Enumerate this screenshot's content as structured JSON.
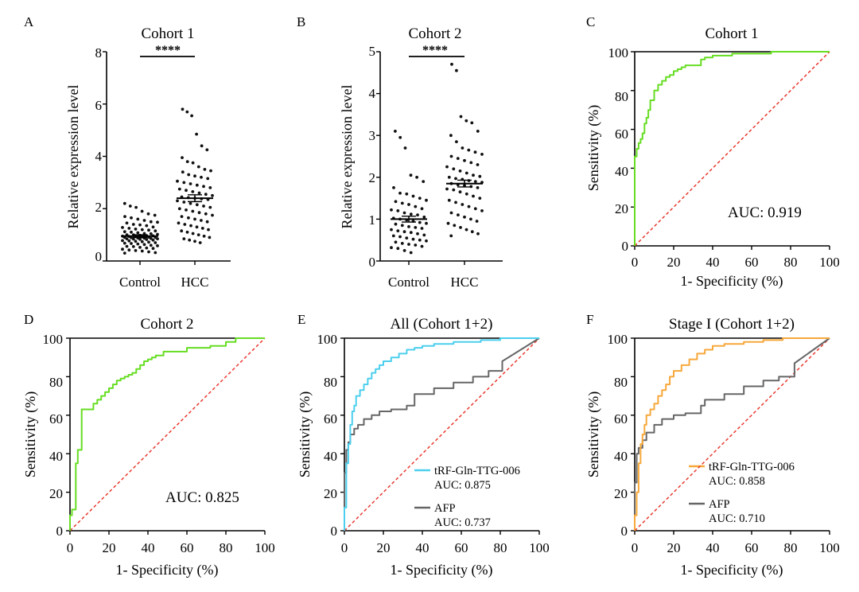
{
  "figure": {
    "width": 1080,
    "height": 744
  },
  "chart_data": [
    {
      "panel": "A",
      "type": "scatter",
      "title": "Cohort 1",
      "xlabel": "",
      "ylabel": "Relative expression level",
      "categories": [
        "Control",
        "HCC"
      ],
      "ylim": [
        0,
        8
      ],
      "yticks": [
        0,
        2,
        4,
        6,
        8
      ],
      "yticklabels": [
        "0",
        "2",
        "4",
        "6",
        "8"
      ],
      "significance": "****",
      "groups": [
        {
          "name": "Control",
          "mean": 0.95,
          "sem": 0.05,
          "values": [
            2.2,
            2.1,
            2.05,
            1.9,
            1.8,
            1.75,
            1.7,
            1.65,
            1.6,
            1.55,
            1.5,
            1.48,
            1.45,
            1.4,
            1.38,
            1.35,
            1.3,
            1.28,
            1.25,
            1.22,
            1.2,
            1.18,
            1.15,
            1.12,
            1.1,
            1.08,
            1.05,
            1.04,
            1.02,
            1.0,
            1.0,
            0.98,
            0.97,
            0.96,
            0.95,
            0.94,
            0.93,
            0.92,
            0.91,
            0.9,
            0.9,
            0.89,
            0.88,
            0.87,
            0.86,
            0.85,
            0.85,
            0.84,
            0.83,
            0.82,
            0.8,
            0.78,
            0.77,
            0.75,
            0.74,
            0.72,
            0.7,
            0.68,
            0.67,
            0.65,
            0.63,
            0.6,
            0.58,
            0.56,
            0.55,
            0.52,
            0.5,
            0.48,
            0.45,
            0.42,
            0.4,
            0.38,
            0.35,
            0.32,
            0.3
          ]
        },
        {
          "name": "HCC",
          "mean": 2.4,
          "sem": 0.13,
          "values": [
            5.8,
            5.7,
            5.55,
            4.85,
            4.4,
            4.25,
            3.95,
            3.8,
            3.75,
            3.6,
            3.5,
            3.45,
            3.4,
            3.3,
            3.25,
            3.2,
            3.15,
            3.05,
            3.0,
            2.95,
            2.9,
            2.85,
            2.8,
            2.75,
            2.7,
            2.65,
            2.6,
            2.55,
            2.5,
            2.45,
            2.42,
            2.4,
            2.38,
            2.35,
            2.3,
            2.25,
            2.2,
            2.15,
            2.1,
            2.05,
            2.0,
            1.95,
            1.9,
            1.85,
            1.8,
            1.75,
            1.7,
            1.65,
            1.6,
            1.55,
            1.5,
            1.45,
            1.4,
            1.35,
            1.3,
            1.25,
            1.2,
            1.15,
            1.1,
            1.05,
            1.0,
            0.95,
            0.9,
            0.85,
            0.8,
            0.75,
            0.7
          ]
        }
      ]
    },
    {
      "panel": "B",
      "type": "scatter",
      "title": "Cohort 2",
      "xlabel": "",
      "ylabel": "Relative expression level",
      "categories": [
        "Control",
        "HCC"
      ],
      "ylim": [
        0,
        5
      ],
      "yticks": [
        0,
        1,
        2,
        3,
        4,
        5
      ],
      "yticklabels": [
        "0",
        "1",
        "2",
        "3",
        "4",
        "5"
      ],
      "significance": "****",
      "groups": [
        {
          "name": "Control",
          "mean": 1.0,
          "sem": 0.07,
          "values": [
            3.1,
            2.95,
            2.7,
            2.05,
            2.0,
            1.9,
            1.75,
            1.62,
            1.6,
            1.55,
            1.5,
            1.45,
            1.42,
            1.38,
            1.35,
            1.3,
            1.25,
            1.22,
            1.2,
            1.15,
            1.12,
            1.1,
            1.05,
            1.02,
            1.0,
            0.98,
            0.95,
            0.92,
            0.9,
            0.88,
            0.85,
            0.82,
            0.8,
            0.78,
            0.75,
            0.72,
            0.7,
            0.68,
            0.65,
            0.62,
            0.6,
            0.58,
            0.55,
            0.52,
            0.5,
            0.48,
            0.45,
            0.42,
            0.4,
            0.38,
            0.35,
            0.32,
            0.3,
            0.25,
            0.2
          ]
        },
        {
          "name": "HCC",
          "mean": 1.85,
          "sem": 0.08,
          "values": [
            4.7,
            4.55,
            3.45,
            3.35,
            3.3,
            3.1,
            3.0,
            2.85,
            2.7,
            2.65,
            2.6,
            2.55,
            2.5,
            2.45,
            2.4,
            2.35,
            2.3,
            2.25,
            2.2,
            2.15,
            2.1,
            2.05,
            2.02,
            2.0,
            1.97,
            1.95,
            1.92,
            1.9,
            1.88,
            1.85,
            1.82,
            1.8,
            1.78,
            1.75,
            1.72,
            1.7,
            1.65,
            1.6,
            1.55,
            1.5,
            1.45,
            1.4,
            1.35,
            1.3,
            1.25,
            1.2,
            1.15,
            1.1,
            1.05,
            1.0,
            0.95,
            0.9,
            0.85,
            0.8,
            0.75,
            0.7,
            0.65,
            0.6
          ]
        }
      ]
    },
    {
      "panel": "C",
      "type": "line",
      "title": "Cohort 1",
      "xlabel": "1- Specificity (%)",
      "ylabel": "Sensitivity (%)",
      "xlim": [
        0,
        100
      ],
      "ylim": [
        0,
        100
      ],
      "xticks": [
        0,
        20,
        40,
        60,
        80,
        100
      ],
      "xticklabels": [
        "0",
        "20",
        "40",
        "60",
        "80",
        "100"
      ],
      "yticks": [
        0,
        20,
        40,
        60,
        80,
        100
      ],
      "yticklabels": [
        "0",
        "20",
        "40",
        "60",
        "80",
        "100"
      ],
      "annotation": "AUC: 0.919",
      "reference_line": true,
      "series": [
        {
          "name": "Cohort 1",
          "color": "#66dd22",
          "x": [
            0,
            0,
            1,
            1,
            2,
            2,
            3,
            3,
            4,
            4,
            5,
            5,
            6,
            6,
            7,
            7,
            8,
            8,
            10,
            10,
            12,
            12,
            14,
            14,
            16,
            16,
            18,
            18,
            20,
            20,
            22,
            22,
            24,
            24,
            26,
            26,
            34,
            34,
            36,
            36,
            40,
            40,
            50,
            50,
            70,
            70,
            100
          ],
          "y": [
            0,
            46,
            46,
            50,
            50,
            53,
            53,
            55,
            55,
            58,
            58,
            63,
            63,
            66,
            66,
            70,
            70,
            75,
            75,
            80,
            80,
            83,
            83,
            85,
            85,
            87,
            87,
            88,
            88,
            90,
            90,
            91,
            91,
            92,
            92,
            93,
            93,
            96,
            96,
            97,
            97,
            98,
            98,
            99,
            99,
            100,
            100
          ]
        }
      ]
    },
    {
      "panel": "D",
      "type": "line",
      "title": "Cohort 2",
      "xlabel": "1- Specificity (%)",
      "ylabel": "Sensitivity (%)",
      "xlim": [
        0,
        100
      ],
      "ylim": [
        0,
        100
      ],
      "xticks": [
        0,
        20,
        40,
        60,
        80,
        100
      ],
      "xticklabels": [
        "0",
        "20",
        "40",
        "60",
        "80",
        "100"
      ],
      "yticks": [
        0,
        20,
        40,
        60,
        80,
        100
      ],
      "yticklabels": [
        "0",
        "20",
        "40",
        "60",
        "80",
        "100"
      ],
      "annotation": "AUC: 0.825",
      "reference_line": true,
      "series": [
        {
          "name": "Cohort 2",
          "color": "#66dd22",
          "x": [
            0,
            0,
            1,
            1,
            3,
            3,
            4,
            4,
            6,
            6,
            7,
            7,
            12,
            12,
            14,
            14,
            16,
            16,
            18,
            18,
            20,
            20,
            22,
            22,
            24,
            24,
            26,
            26,
            28,
            28,
            30,
            30,
            32,
            32,
            34,
            34,
            36,
            36,
            38,
            38,
            40,
            40,
            42,
            42,
            44,
            44,
            48,
            48,
            60,
            60,
            72,
            72,
            80,
            80,
            85,
            85,
            100
          ],
          "y": [
            0,
            8,
            8,
            11,
            11,
            35,
            35,
            42,
            42,
            63,
            63,
            63,
            63,
            66,
            66,
            68,
            68,
            70,
            70,
            72,
            72,
            74,
            74,
            76,
            76,
            78,
            78,
            79,
            79,
            80,
            80,
            81,
            81,
            82,
            82,
            84,
            84,
            86,
            86,
            88,
            88,
            89,
            89,
            90,
            90,
            91,
            91,
            93,
            93,
            95,
            95,
            96,
            96,
            98,
            98,
            100,
            100
          ]
        }
      ]
    },
    {
      "panel": "E",
      "type": "line",
      "title": "All (Cohort 1+2)",
      "xlabel": "1- Specificity (%)",
      "ylabel": "Sensitivity (%)",
      "xlim": [
        0,
        100
      ],
      "ylim": [
        0,
        100
      ],
      "xticks": [
        0,
        20,
        40,
        60,
        80,
        100
      ],
      "xticklabels": [
        "0",
        "20",
        "40",
        "60",
        "80",
        "100"
      ],
      "yticks": [
        0,
        20,
        40,
        60,
        80,
        100
      ],
      "yticklabels": [
        "0",
        "20",
        "40",
        "60",
        "80",
        "100"
      ],
      "reference_line": true,
      "series": [
        {
          "name": "tRF-Gln-TTG-006",
          "auc_label": "AUC: 0.875",
          "color": "#4ccfee",
          "x": [
            0,
            0,
            1,
            1,
            2,
            2,
            3,
            3,
            4,
            4,
            5,
            5,
            6,
            6,
            8,
            8,
            10,
            10,
            12,
            12,
            14,
            14,
            16,
            16,
            18,
            18,
            20,
            20,
            24,
            24,
            28,
            28,
            32,
            32,
            36,
            36,
            40,
            40,
            46,
            46,
            56,
            56,
            70,
            70,
            80,
            80,
            100
          ],
          "y": [
            0,
            12,
            12,
            35,
            35,
            45,
            45,
            55,
            55,
            62,
            62,
            65,
            65,
            70,
            70,
            73,
            73,
            76,
            76,
            79,
            79,
            82,
            82,
            84,
            84,
            86,
            86,
            88,
            88,
            90,
            90,
            92,
            92,
            94,
            94,
            95,
            95,
            96,
            96,
            97,
            97,
            98,
            98,
            99,
            99,
            100,
            100
          ]
        },
        {
          "name": "AFP",
          "auc_label": "AUC: 0.737",
          "color": "#666666",
          "x": [
            0,
            0,
            1,
            1,
            2,
            2,
            3,
            3,
            5,
            5,
            7,
            7,
            10,
            10,
            14,
            14,
            18,
            18,
            24,
            24,
            32,
            32,
            36,
            36,
            46,
            46,
            56,
            56,
            66,
            66,
            74,
            74,
            81,
            81,
            100
          ],
          "y": [
            0,
            30,
            30,
            42,
            42,
            46,
            46,
            50,
            50,
            53,
            53,
            55,
            55,
            58,
            58,
            60,
            60,
            62,
            62,
            63,
            63,
            65,
            65,
            71,
            71,
            74,
            74,
            77,
            77,
            80,
            80,
            83,
            83,
            88,
            100
          ]
        }
      ]
    },
    {
      "panel": "F",
      "type": "line",
      "title": "Stage I (Cohort 1+2)",
      "xlabel": "1- Specificity (%)",
      "ylabel": "Sensitivity (%)",
      "xlim": [
        0,
        100
      ],
      "ylim": [
        0,
        100
      ],
      "xticks": [
        0,
        20,
        40,
        60,
        80,
        100
      ],
      "xticklabels": [
        "0",
        "20",
        "40",
        "60",
        "80",
        "100"
      ],
      "yticks": [
        0,
        20,
        40,
        60,
        80,
        100
      ],
      "yticklabels": [
        "0",
        "20",
        "40",
        "60",
        "80",
        "100"
      ],
      "reference_line": true,
      "series": [
        {
          "name": "tRF-Gln-TTG-006",
          "auc_label": "AUC: 0.858",
          "color": "#f7a83a",
          "x": [
            0,
            0,
            1,
            1,
            2,
            2,
            3,
            3,
            4,
            4,
            5,
            5,
            6,
            6,
            8,
            8,
            10,
            10,
            12,
            12,
            14,
            14,
            16,
            16,
            18,
            18,
            20,
            20,
            24,
            24,
            28,
            28,
            32,
            32,
            36,
            36,
            40,
            40,
            46,
            46,
            56,
            56,
            66,
            66,
            76,
            76,
            100
          ],
          "y": [
            0,
            8,
            8,
            20,
            20,
            35,
            35,
            45,
            45,
            50,
            50,
            55,
            55,
            60,
            60,
            63,
            63,
            66,
            66,
            70,
            70,
            73,
            73,
            76,
            76,
            80,
            80,
            83,
            83,
            86,
            86,
            89,
            89,
            92,
            92,
            94,
            94,
            96,
            96,
            97,
            97,
            98,
            98,
            99,
            99,
            100,
            100
          ]
        },
        {
          "name": "AFP",
          "auc_label": "AUC: 0.710",
          "color": "#666666",
          "x": [
            0,
            0,
            1,
            1,
            2,
            2,
            4,
            4,
            6,
            6,
            10,
            10,
            14,
            14,
            20,
            20,
            26,
            26,
            34,
            34,
            36,
            36,
            46,
            46,
            56,
            56,
            66,
            66,
            74,
            74,
            82,
            82,
            100
          ],
          "y": [
            0,
            25,
            25,
            40,
            40,
            43,
            43,
            47,
            47,
            51,
            51,
            55,
            55,
            58,
            58,
            60,
            60,
            61,
            61,
            65,
            65,
            68,
            68,
            71,
            71,
            75,
            75,
            78,
            78,
            80,
            80,
            87,
            100
          ]
        }
      ]
    }
  ]
}
